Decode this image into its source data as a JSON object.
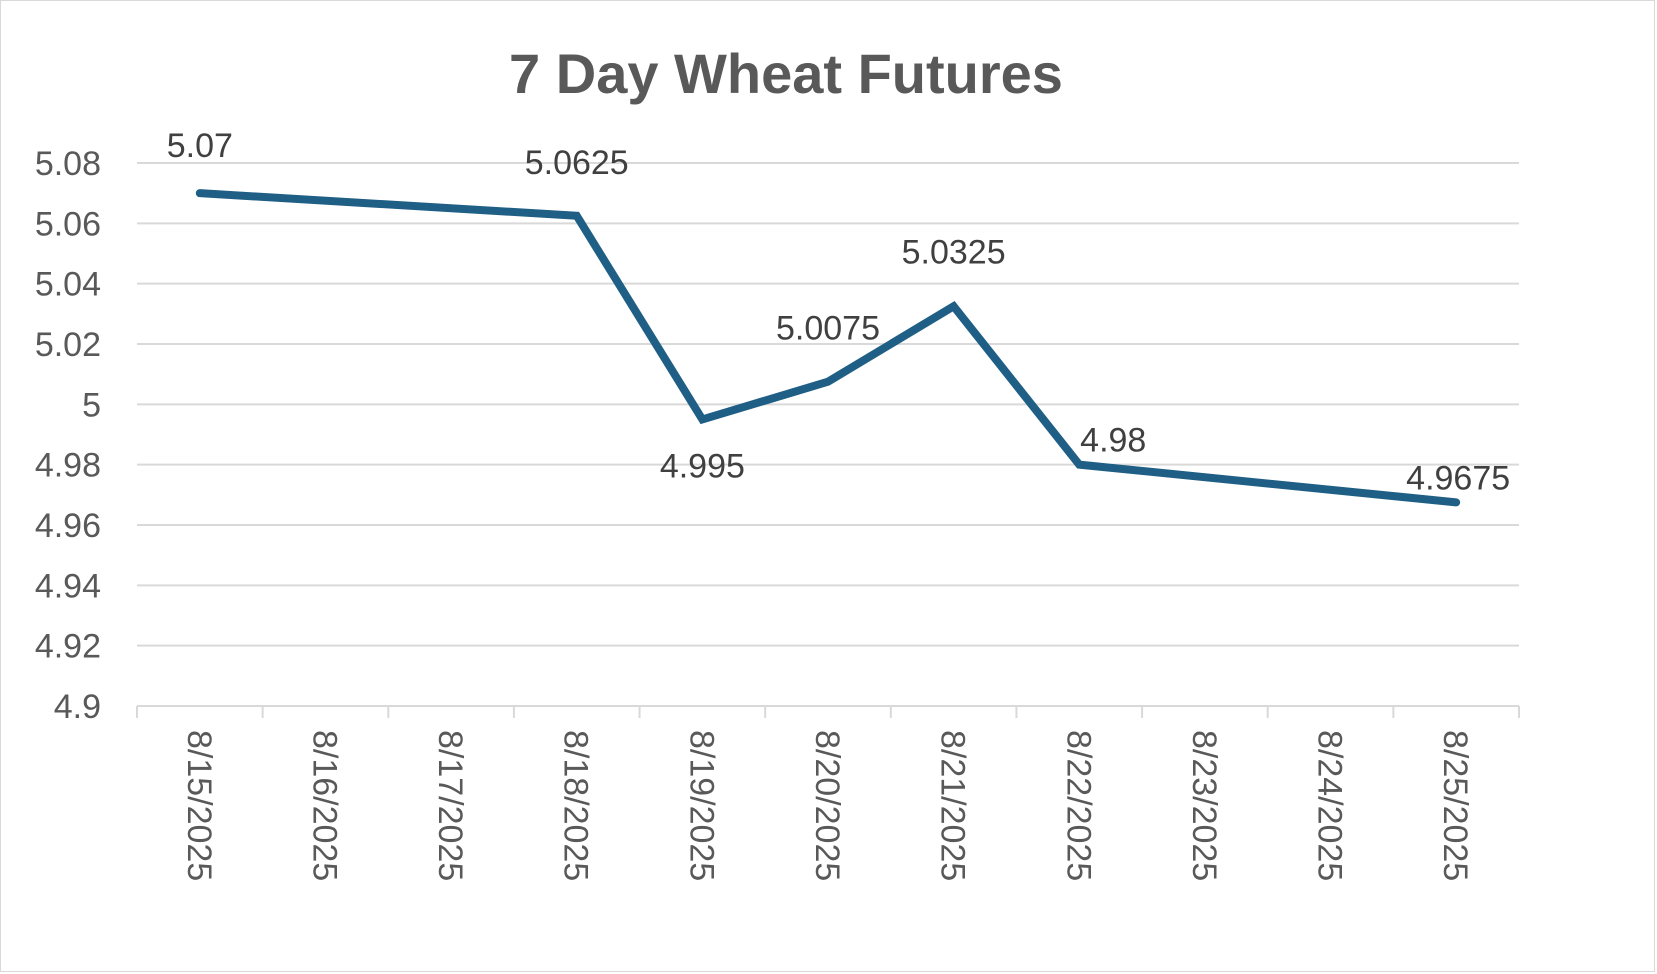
{
  "chart_data": {
    "type": "line",
    "title": "7 Day Wheat Futures",
    "xlabel": "",
    "ylabel": "",
    "categories": [
      "8/15/2025",
      "8/16/2025",
      "8/17/2025",
      "8/18/2025",
      "8/19/2025",
      "8/20/2025",
      "8/21/2025",
      "8/22/2025",
      "8/23/2025",
      "8/24/2025",
      "8/25/2025"
    ],
    "y_ticks": [
      "4.9",
      "4.92",
      "4.94",
      "4.96",
      "4.98",
      "5",
      "5.02",
      "5.04",
      "5.06",
      "5.08"
    ],
    "ylim": [
      4.9,
      5.08
    ],
    "grid": true,
    "legend": "none",
    "series": [
      {
        "points": [
          {
            "x": "8/15/2025",
            "y": 5.07,
            "label": "5.07"
          },
          {
            "x": "8/18/2025",
            "y": 5.0625,
            "label": "5.0625"
          },
          {
            "x": "8/19/2025",
            "y": 4.995,
            "label": "4.995"
          },
          {
            "x": "8/20/2025",
            "y": 5.0075,
            "label": "5.0075"
          },
          {
            "x": "8/21/2025",
            "y": 5.0325,
            "label": "5.0325"
          },
          {
            "x": "8/22/2025",
            "y": 4.98,
            "label": "4.98"
          },
          {
            "x": "8/25/2025",
            "y": 4.9675,
            "label": "4.9675"
          }
        ],
        "color": "#1f5f85"
      }
    ],
    "colors": {
      "gridline": "#d9d9d9",
      "axis": "#d9d9d9",
      "text": "#595959",
      "label": "#404040"
    }
  }
}
